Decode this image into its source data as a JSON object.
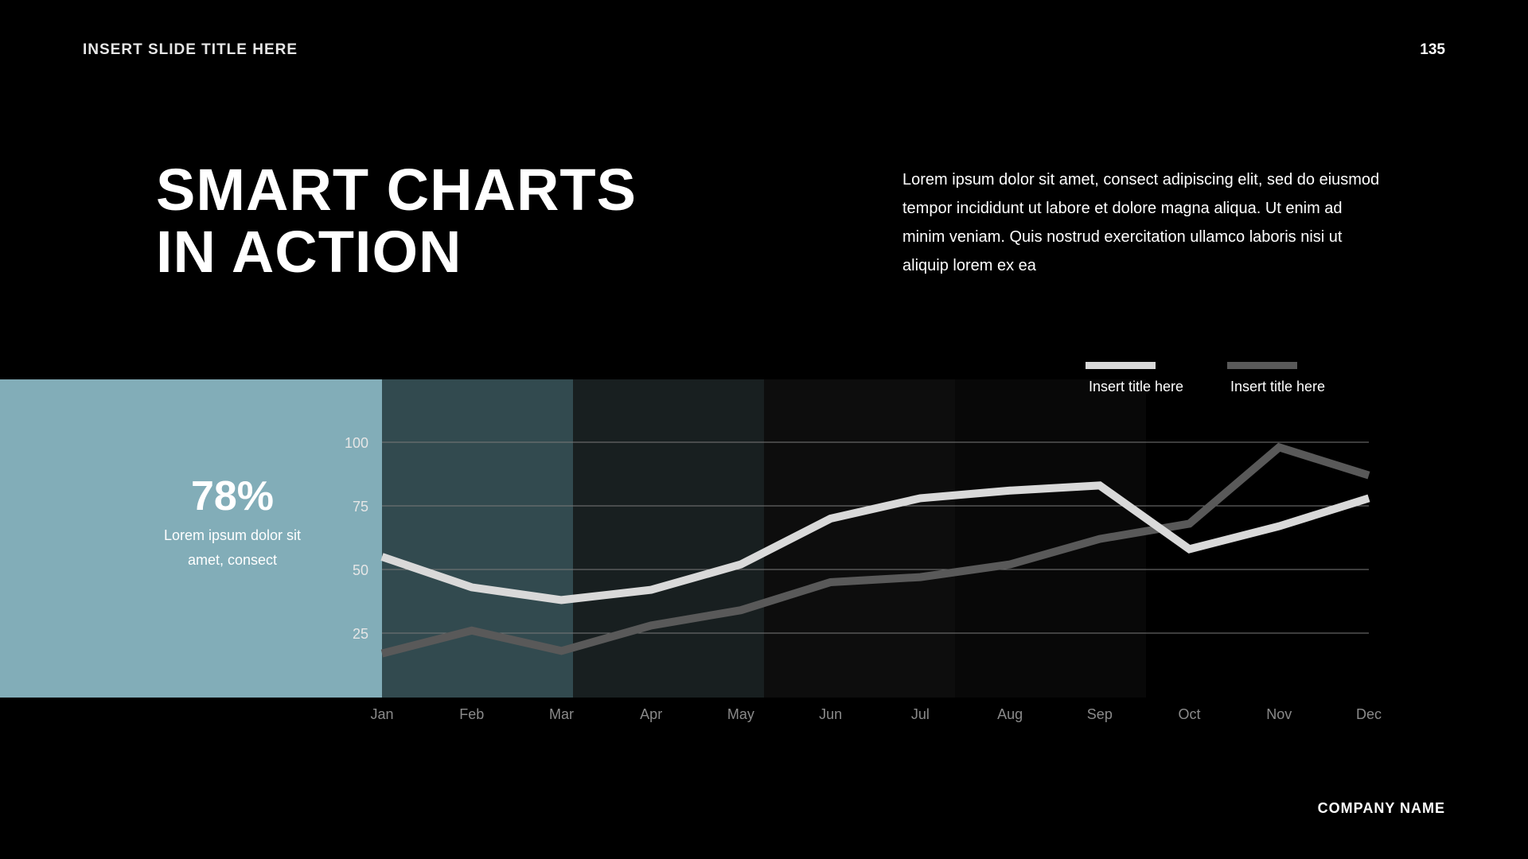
{
  "header": {
    "slide_title": "INSERT SLIDE TITLE HERE",
    "page_number": "135"
  },
  "headline": {
    "line1": "SMART CHARTS",
    "line2": "IN ACTION"
  },
  "body_text": "Lorem ipsum dolor sit amet, consect adipiscing elit, sed do eiusmod tempor incididunt ut labore et dolore magna aliqua. Ut enim ad minim veniam.  Quis nostrud exercitation ullamco laboris nisi ut aliquip lorem ex ea",
  "stat": {
    "value": "78%",
    "caption": "Lorem ipsum dolor sit amet, consect"
  },
  "footer": {
    "company": "COMPANY NAME"
  },
  "colors": {
    "accent": "#82adb8",
    "series1": "#d9d9d9",
    "series2": "#595959",
    "band_colors": [
      "#324a4f",
      "#181f20",
      "#0d0d0d",
      "#080808",
      "#000000"
    ]
  },
  "chart_data": {
    "type": "line",
    "title": "",
    "xlabel": "",
    "ylabel": "",
    "ylim": [
      0,
      100
    ],
    "yticks": [
      25,
      50,
      75,
      100
    ],
    "categories": [
      "Jan",
      "Feb",
      "Mar",
      "Apr",
      "May",
      "Jun",
      "Jul",
      "Aug",
      "Sep",
      "Oct",
      "Nov",
      "Dec"
    ],
    "series": [
      {
        "name": "Insert title here",
        "values": [
          55,
          43,
          38,
          42,
          52,
          70,
          78,
          81,
          83,
          58,
          67,
          78
        ]
      },
      {
        "name": "Insert title here",
        "values": [
          17,
          26,
          18,
          28,
          34,
          45,
          47,
          52,
          62,
          68,
          98,
          87
        ]
      }
    ],
    "grid": true,
    "legend": "top-right"
  }
}
